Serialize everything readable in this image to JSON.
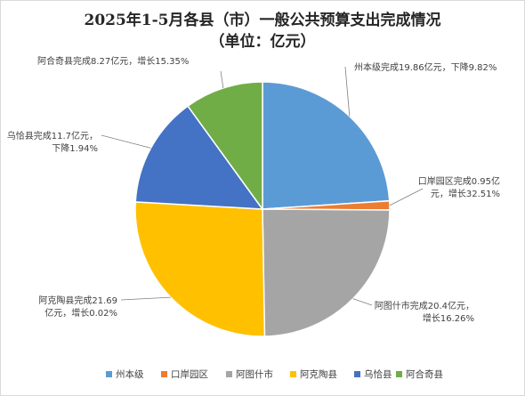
{
  "chart_data": {
    "type": "pie",
    "title_line1": "2025年1-5月各县（市）一般公共预算支出完成情况",
    "title_line2": "（单位：亿元）",
    "slices": [
      {
        "name": "州本级",
        "value": 19.86,
        "color": "#5b9bd5",
        "label": [
          "州本级完成19.86亿元，下降9.82%"
        ]
      },
      {
        "name": "口岸园区",
        "value": 0.95,
        "color": "#ed7d31",
        "label": [
          "口岸园区完成0.95亿",
          "元，增长32.51%"
        ]
      },
      {
        "name": "阿图什市",
        "value": 20.4,
        "color": "#a5a5a5",
        "label": [
          "阿图什市完成20.4亿元，",
          "增长16.26%"
        ]
      },
      {
        "name": "阿克陶县",
        "value": 21.69,
        "color": "#ffc000",
        "label": [
          "阿克陶县完成21.69",
          "亿元，增长0.02%"
        ]
      },
      {
        "name": "乌恰县",
        "value": 11.7,
        "color": "#4472c4",
        "label": [
          "乌恰县完成11.7亿元，",
          "下降1.94%"
        ]
      },
      {
        "name": "阿合奇县",
        "value": 8.27,
        "color": "#70ad47",
        "label": [
          "阿合奇县完成8.27亿元，增长15.35%"
        ]
      }
    ],
    "legend_position": "bottom"
  }
}
